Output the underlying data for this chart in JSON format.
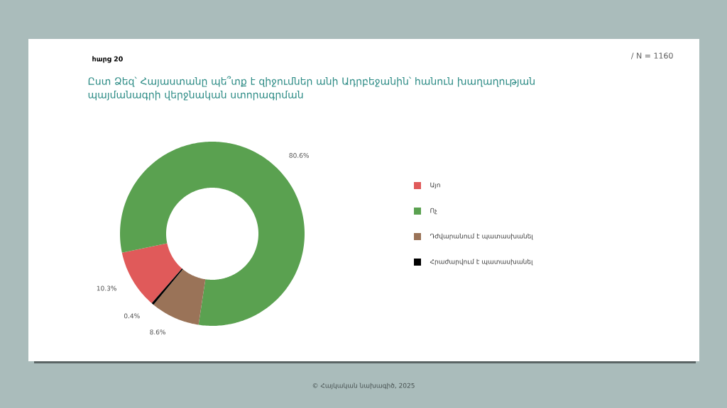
{
  "chart_data": {
    "type": "donut",
    "title": "Ըստ Ձեզ՝ Հայաստանը պե՞տք է զիջումներ անի Ադրբեջանին՝ հանուն խաղաղության պայմանագրի վերջնական ստորագրման",
    "subtitle": "հարց 20",
    "categories": [
      "Այո",
      "Ոչ",
      "Դժվարանում է պատասխանել",
      "Հրաժարվում է պատասխանել"
    ],
    "values": [
      10.3,
      80.6,
      8.6,
      0.4
    ],
    "colors": [
      "#e05a5a",
      "#5aa150",
      "#9a7358",
      "#000000"
    ],
    "value_labels": [
      "10.3%",
      "80.6%",
      "8.6%",
      "0.4%"
    ],
    "legend": "right",
    "annotations": [
      "/ N = 1160",
      "© Հայկական նախագիծ, 2025"
    ]
  }
}
